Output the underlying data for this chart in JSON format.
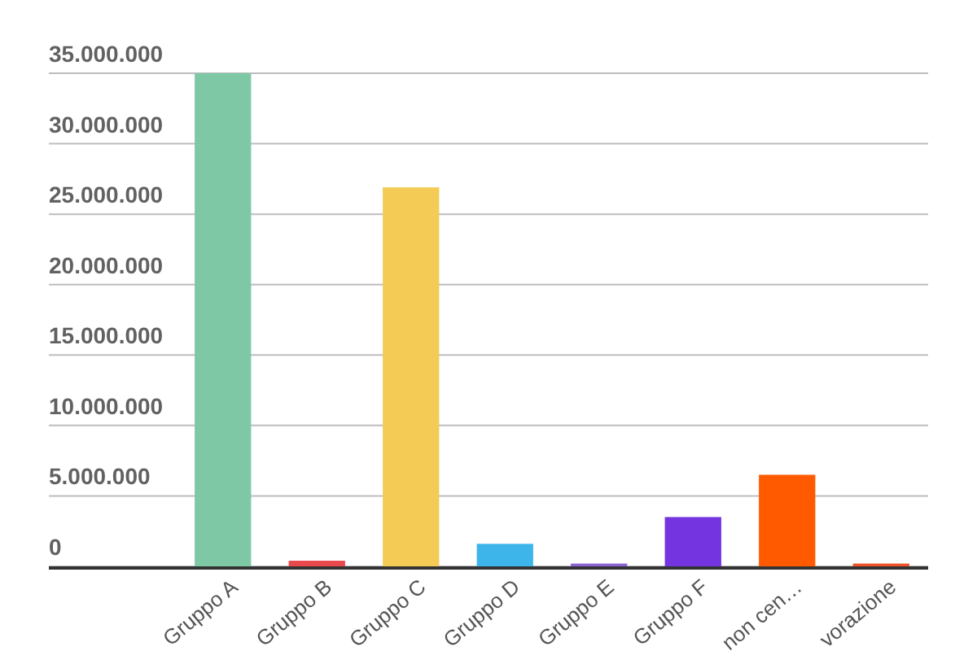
{
  "chart_data": {
    "type": "bar",
    "categories": [
      "Gruppo A",
      "Gruppo B",
      "Gruppo C",
      "Gruppo D",
      "Gruppo E",
      "Gruppo F",
      "non cen…",
      "vorazione"
    ],
    "values": [
      35000000,
      400000,
      26900000,
      1600000,
      200000,
      3500000,
      6500000,
      200000
    ],
    "colors": [
      "#7ec8a6",
      "#e8474c",
      "#f4cb55",
      "#3db5ea",
      "#8a63d2",
      "#7434e0",
      "#ff5a00",
      "#f0522a"
    ],
    "ylim": [
      0,
      35000000
    ],
    "yticks": [
      {
        "value": 0,
        "label": "0"
      },
      {
        "value": 5000000,
        "label": "5.000.000"
      },
      {
        "value": 10000000,
        "label": "10.000.000"
      },
      {
        "value": 15000000,
        "label": "15.000.000"
      },
      {
        "value": 20000000,
        "label": "20.000.000"
      },
      {
        "value": 25000000,
        "label": "25.000.000"
      },
      {
        "value": 30000000,
        "label": "30.000.000"
      },
      {
        "value": 35000000,
        "label": "35.000.000"
      }
    ],
    "grid": "y"
  }
}
